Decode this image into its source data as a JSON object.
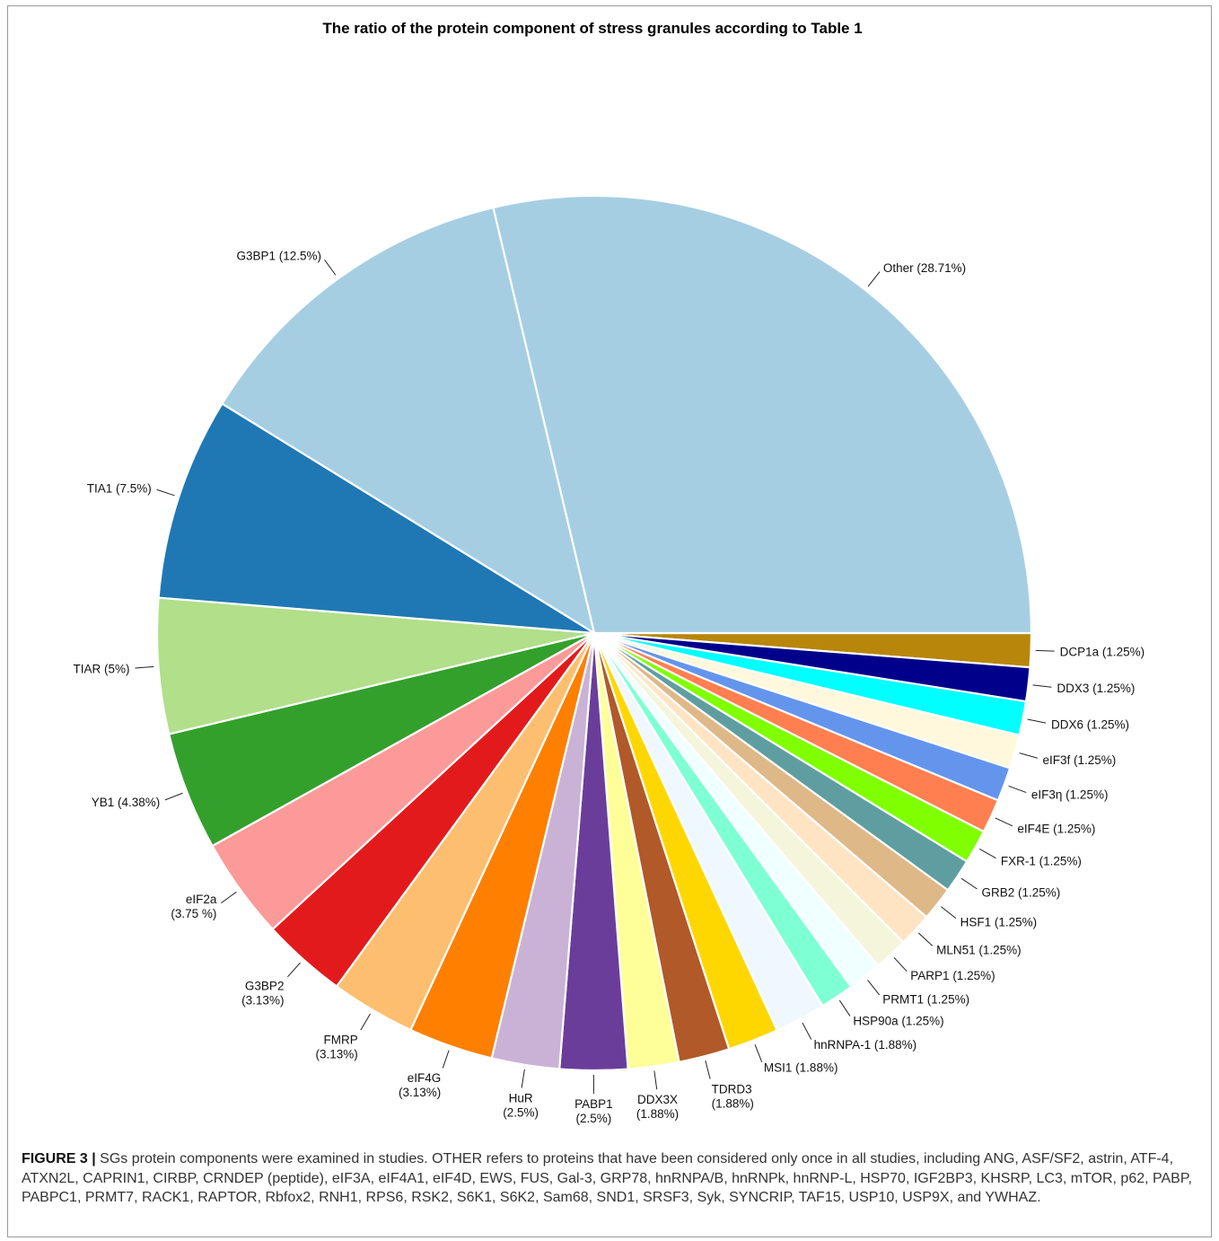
{
  "chart_data": {
    "type": "pie",
    "title": "The ratio of the protein component of stress granules according to Table 1",
    "start_angle_deg": 0,
    "direction": "clockwise",
    "slices": [
      {
        "label": "DCP1a (1.25%)",
        "lines": [
          "DCP1a (1.25%)"
        ],
        "value": 1.25,
        "color": "#b8860b"
      },
      {
        "label": "DDX3 (1.25%)",
        "lines": [
          "DDX3 (1.25%)"
        ],
        "value": 1.25,
        "color": "#00008b"
      },
      {
        "label": "DDX6 (1.25%)",
        "lines": [
          "DDX6 (1.25%)"
        ],
        "value": 1.25,
        "color": "#00ffff"
      },
      {
        "label": "eIF3f (1.25%)",
        "lines": [
          "eIF3f (1.25%)"
        ],
        "value": 1.25,
        "color": "#fff8dc"
      },
      {
        "label": "eIF3η (1.25%)",
        "lines": [
          "eIF3η (1.25%)"
        ],
        "value": 1.25,
        "color": "#6495ed"
      },
      {
        "label": "eIF4E (1.25%)",
        "lines": [
          "eIF4E (1.25%)"
        ],
        "value": 1.25,
        "color": "#ff7f50"
      },
      {
        "label": "FXR-1 (1.25%)",
        "lines": [
          "FXR-1 (1.25%)"
        ],
        "value": 1.25,
        "color": "#7fff00"
      },
      {
        "label": "GRB2 (1.25%)",
        "lines": [
          "GRB2 (1.25%)"
        ],
        "value": 1.25,
        "color": "#5f9ea0"
      },
      {
        "label": "HSF1 (1.25%)",
        "lines": [
          "HSF1 (1.25%)"
        ],
        "value": 1.25,
        "color": "#deb887"
      },
      {
        "label": "MLN51 (1.25%)",
        "lines": [
          "MLN51 (1.25%)"
        ],
        "value": 1.25,
        "color": "#ffe4c4"
      },
      {
        "label": "PARP1 (1.25%)",
        "lines": [
          "PARP1 (1.25%)"
        ],
        "value": 1.25,
        "color": "#f5f5dc"
      },
      {
        "label": "PRMT1 (1.25%)",
        "lines": [
          "PRMT1 (1.25%)"
        ],
        "value": 1.25,
        "color": "#f0ffff"
      },
      {
        "label": "HSP90a (1.25%)",
        "lines": [
          "HSP90a (1.25%)"
        ],
        "value": 1.25,
        "color": "#7fffd4"
      },
      {
        "label": "hnRNPA-1 (1.88%)",
        "lines": [
          "hnRNPA-1 (1.88%)"
        ],
        "value": 1.88,
        "color": "#f0f8ff"
      },
      {
        "label": "MSI1 (1.88%)",
        "lines": [
          "MSI1 (1.88%)"
        ],
        "value": 1.88,
        "color": "#ffd700"
      },
      {
        "label": "TDRD3 (1.88%)",
        "lines": [
          "TDRD3",
          "(1.88%)"
        ],
        "value": 1.88,
        "color": "#b15928"
      },
      {
        "label": "DDX3X (1.88%)",
        "lines": [
          "DDX3X",
          "(1.88%)"
        ],
        "value": 1.88,
        "color": "#ffff99"
      },
      {
        "label": "PABP1 (2.5%)",
        "lines": [
          "PABP1",
          "(2.5%)"
        ],
        "value": 2.5,
        "color": "#6a3d9a"
      },
      {
        "label": "HuR (2.5%)",
        "lines": [
          "HuR",
          "(2.5%)"
        ],
        "value": 2.5,
        "color": "#cab2d6"
      },
      {
        "label": "eIF4G (3.13%)",
        "lines": [
          "eIF4G",
          "(3.13%)"
        ],
        "value": 3.13,
        "color": "#ff7f00"
      },
      {
        "label": "FMRP (3.13%)",
        "lines": [
          "FMRP",
          "(3.13%)"
        ],
        "value": 3.13,
        "color": "#fdbf6f"
      },
      {
        "label": "G3BP2 (3.13%)",
        "lines": [
          "G3BP2",
          "(3.13%)"
        ],
        "value": 3.13,
        "color": "#e31a1c"
      },
      {
        "label": "eIF2a (3.75 %)",
        "lines": [
          "eIF2a",
          "(3.75 %)"
        ],
        "value": 3.75,
        "color": "#fb9a99"
      },
      {
        "label": "YB1 (4.38%)",
        "lines": [
          "YB1 (4.38%)"
        ],
        "value": 4.38,
        "color": "#33a02c"
      },
      {
        "label": "TIAR (5%)",
        "lines": [
          "TIAR (5%)"
        ],
        "value": 5.0,
        "color": "#b2df8a"
      },
      {
        "label": "TIA1 (7.5%)",
        "lines": [
          "TIA1 (7.5%)"
        ],
        "value": 7.5,
        "color": "#1f78b4"
      },
      {
        "label": "G3BP1 (12.5%)",
        "lines": [
          "G3BP1 (12.5%)"
        ],
        "value": 12.5,
        "color": "#a6cee3"
      },
      {
        "label": "Other (28.71%)",
        "lines": [
          "Other (28.71%)"
        ],
        "value": 28.71,
        "color": "#a6cee3"
      }
    ]
  },
  "caption": {
    "label": "FIGURE 3 |",
    "text": "SGs protein components were examined in studies. OTHER refers to proteins that have been considered only once in all studies, including ANG, ASF/SF2, astrin, ATF-4, ATXN2L, CAPRIN1, CIRBP, CRNDEP (peptide), eIF3A, eIF4A1, eIF4D, EWS, FUS, Gal-3, GRP78, hnRNPA/B, hnRNPk, hnRNP-L, HSP70, IGF2BP3, KHSRP, LC3, mTOR, p62, PABP, PABPC1, PRMT7, RACK1, RAPTOR, Rbfox2, RNH1, RPS6, RSK2, S6K1, S6K2, Sam68, SND1, SRSF3, Syk, SYNCRIP, TAF15, USP10, USP9X, and YWHAZ."
  }
}
